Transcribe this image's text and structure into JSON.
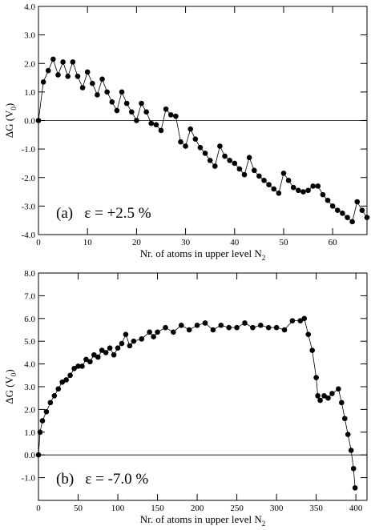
{
  "chart_data": [
    {
      "type": "line",
      "annotation": "(a)   ε = +2.5 %",
      "x_label": [
        "Nr. of atoms in upper level N",
        "2"
      ],
      "y_label": [
        "ΔG (V",
        "0",
        ")"
      ],
      "xlim": [
        0,
        67
      ],
      "xticks": [
        0,
        10,
        20,
        30,
        40,
        50,
        60
      ],
      "ylim": [
        -4,
        4
      ],
      "yticks": [
        {
          "value": -4,
          "label": "-4.0"
        },
        {
          "value": -3,
          "label": "-3.0"
        },
        {
          "value": -2,
          "label": "-2.0"
        },
        {
          "value": -1,
          "label": "-1.0"
        },
        {
          "value": 0,
          "label": "0.0"
        },
        {
          "value": 1,
          "label": "1.0"
        },
        {
          "value": 2,
          "label": "2.0"
        },
        {
          "value": 3,
          "label": "3.0"
        },
        {
          "value": 4,
          "label": "4.0"
        }
      ],
      "color": "#000000",
      "x": [
        0,
        1,
        2,
        3,
        4,
        5,
        6,
        7,
        8,
        9,
        10,
        11,
        12,
        13,
        14,
        15,
        16,
        17,
        18,
        19,
        20,
        21,
        22,
        23,
        24,
        25,
        26,
        27,
        28,
        29,
        30,
        31,
        32,
        33,
        34,
        35,
        36,
        37,
        38,
        39,
        40,
        41,
        42,
        43,
        44,
        45,
        46,
        47,
        48,
        49,
        50,
        51,
        52,
        53,
        54,
        55,
        56,
        57,
        58,
        59,
        60,
        61,
        62,
        63,
        64,
        65,
        66,
        67
      ],
      "values": [
        0,
        1.35,
        1.75,
        2.15,
        1.6,
        2.05,
        1.55,
        2.05,
        1.55,
        1.15,
        1.7,
        1.3,
        0.9,
        1.45,
        1.0,
        0.65,
        0.35,
        1.0,
        0.6,
        0.3,
        0.0,
        0.6,
        0.3,
        -0.1,
        -0.15,
        -0.35,
        0.4,
        0.2,
        0.15,
        -0.75,
        -0.9,
        -0.3,
        -0.65,
        -0.95,
        -1.15,
        -1.4,
        -1.6,
        -0.9,
        -1.25,
        -1.4,
        -1.5,
        -1.7,
        -1.9,
        -1.3,
        -1.75,
        -1.95,
        -2.1,
        -2.25,
        -2.4,
        -2.55,
        -1.85,
        -2.1,
        -2.35,
        -2.45,
        -2.5,
        -2.45,
        -2.3,
        -2.3,
        -2.6,
        -2.8,
        -3.0,
        -3.15,
        -3.25,
        -3.4,
        -3.55,
        -2.85,
        -3.15,
        -3.4
      ]
    },
    {
      "type": "line",
      "annotation": "(b)   ε = -7.0 %",
      "x_label": [
        "Nr. of atoms in upper level N",
        "2"
      ],
      "y_label": [
        "ΔG (V",
        "0",
        ")"
      ],
      "xlim": [
        0,
        414
      ],
      "xticks": [
        0,
        50,
        100,
        150,
        200,
        250,
        300,
        350,
        400
      ],
      "ylim": [
        -2,
        8
      ],
      "yticks": [
        {
          "value": -1,
          "label": "-1.0"
        },
        {
          "value": 0,
          "label": "0.0"
        },
        {
          "value": 1,
          "label": "1.0"
        },
        {
          "value": 2,
          "label": "2.0"
        },
        {
          "value": 3,
          "label": "3.0"
        },
        {
          "value": 4,
          "label": "4.0"
        },
        {
          "value": 5,
          "label": "5.0"
        },
        {
          "value": 6,
          "label": "6.0"
        },
        {
          "value": 7,
          "label": "7.0"
        },
        {
          "value": 8,
          "label": "8.0"
        }
      ],
      "color": "#000000",
      "x": [
        0,
        2,
        5,
        10,
        15,
        20,
        25,
        30,
        35,
        40,
        45,
        50,
        55,
        60,
        65,
        70,
        75,
        80,
        85,
        90,
        95,
        100,
        105,
        110,
        115,
        120,
        130,
        140,
        145,
        150,
        160,
        170,
        180,
        190,
        200,
        210,
        220,
        230,
        240,
        250,
        260,
        270,
        280,
        290,
        300,
        310,
        320,
        330,
        335,
        340,
        345,
        350,
        352,
        355,
        360,
        365,
        370,
        378,
        382,
        386,
        390,
        394,
        397,
        399
      ],
      "values": [
        0,
        1.0,
        1.5,
        1.9,
        2.3,
        2.6,
        2.9,
        3.2,
        3.3,
        3.5,
        3.8,
        3.9,
        3.9,
        4.2,
        4.1,
        4.4,
        4.3,
        4.6,
        4.5,
        4.7,
        4.4,
        4.7,
        4.9,
        5.3,
        4.8,
        5.0,
        5.1,
        5.4,
        5.2,
        5.4,
        5.6,
        5.4,
        5.7,
        5.5,
        5.7,
        5.8,
        5.5,
        5.7,
        5.6,
        5.6,
        5.8,
        5.6,
        5.7,
        5.6,
        5.6,
        5.5,
        5.9,
        5.9,
        6.0,
        5.3,
        4.6,
        3.4,
        2.6,
        2.4,
        2.6,
        2.5,
        2.7,
        2.9,
        2.3,
        1.6,
        0.9,
        0.2,
        -0.6,
        -1.45
      ]
    }
  ]
}
